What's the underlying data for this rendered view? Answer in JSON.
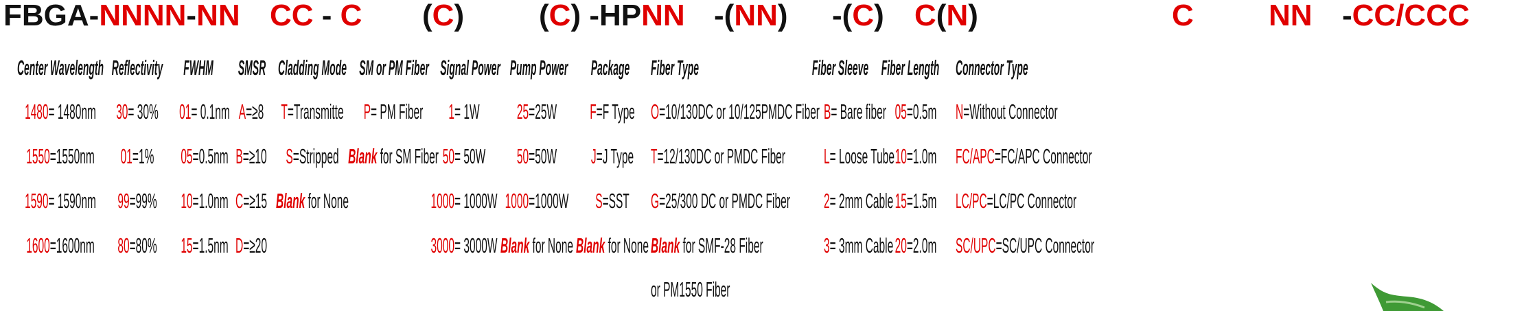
{
  "title_segments": [
    {
      "parts": [
        {
          "t": "FBGA-",
          "red": false
        },
        {
          "t": "NNNN",
          "red": true
        },
        {
          "t": "-",
          "red": false
        },
        {
          "t": "NN",
          "red": true
        }
      ]
    },
    {
      "parts": [
        {
          "t": "CC",
          "red": true
        },
        {
          "t": " - ",
          "red": false
        },
        {
          "t": "C",
          "red": true
        }
      ]
    },
    {
      "parts": [
        {
          "t": "(",
          "red": false
        },
        {
          "t": "C",
          "red": true
        },
        {
          "t": ")",
          "red": false
        }
      ]
    },
    {
      "parts": [
        {
          "t": "(",
          "red": false
        },
        {
          "t": "C",
          "red": true
        },
        {
          "t": ") -HP",
          "red": false
        },
        {
          "t": "NN",
          "red": true
        }
      ]
    },
    {
      "parts": [
        {
          "t": "-(",
          "red": false
        },
        {
          "t": "NN",
          "red": true
        },
        {
          "t": ")",
          "red": false
        }
      ]
    },
    {
      "parts": [
        {
          "t": "-(",
          "red": false
        },
        {
          "t": "C",
          "red": true
        },
        {
          "t": ")",
          "red": false
        }
      ]
    },
    {
      "parts": [
        {
          "t": "C",
          "red": true
        },
        {
          "t": "(",
          "red": false
        },
        {
          "t": "N",
          "red": true
        },
        {
          "t": ")",
          "red": false
        }
      ]
    },
    {
      "parts": [
        {
          "t": "C",
          "red": true
        }
      ]
    },
    {
      "parts": [
        {
          "t": "NN",
          "red": true
        }
      ]
    },
    {
      "parts": [
        {
          "t": "-",
          "red": false
        },
        {
          "t": "CC/CCC",
          "red": true
        }
      ]
    }
  ],
  "columns": [
    {
      "header": "Center Wavelength",
      "items": [
        {
          "code": "1480",
          "desc": "= 1480nm"
        },
        {
          "code": "1550",
          "desc": "=1550nm"
        },
        {
          "code": "1590",
          "desc": "= 1590nm"
        },
        {
          "code": "1600",
          "desc": "=1600nm"
        }
      ]
    },
    {
      "header": "Reflectivity",
      "items": [
        {
          "code": "30",
          "desc": "= 30%"
        },
        {
          "code": "01",
          "desc": "=1%"
        },
        {
          "code": "99",
          "desc": "=99%"
        },
        {
          "code": "80",
          "desc": "=80%"
        }
      ]
    },
    {
      "header": "FWHM",
      "items": [
        {
          "code": "01",
          "desc": "= 0.1nm"
        },
        {
          "code": "05",
          "desc": "=0.5nm"
        },
        {
          "code": "10",
          "desc": "=1.0nm"
        },
        {
          "code": "15",
          "desc": "=1.5nm"
        }
      ]
    },
    {
      "header": "SMSR",
      "items": [
        {
          "code": "A",
          "desc": "=≥8"
        },
        {
          "code": "B",
          "desc": "=≥10"
        },
        {
          "code": "C",
          "desc": "=≥15"
        },
        {
          "code": "D",
          "desc": "=≥20"
        }
      ]
    },
    {
      "header": "Cladding Mode",
      "items": [
        {
          "code": "T",
          "desc": "=Transmitte"
        },
        {
          "code": "S",
          "desc": "=Stripped"
        },
        {
          "code": "Blank",
          "desc": " for None",
          "italic": true
        }
      ]
    },
    {
      "header": "SM or PM Fiber",
      "items": [
        {
          "code": "P",
          "desc": "= PM Fiber"
        },
        {
          "code": "Blank",
          "desc": " for SM Fiber",
          "italic": true
        }
      ]
    },
    {
      "header": "Signal Power",
      "items": [
        {
          "code": "1",
          "desc": "= 1W"
        },
        {
          "code": "50",
          "desc": "= 50W"
        },
        {
          "code": "1000",
          "desc": "= 1000W"
        },
        {
          "code": "3000",
          "desc": "= 3000W"
        }
      ]
    },
    {
      "header": "Pump Power",
      "items": [
        {
          "code": "25",
          "desc": "=25W"
        },
        {
          "code": "50",
          "desc": "=50W"
        },
        {
          "code": "1000",
          "desc": "=1000W"
        },
        {
          "code": "Blank",
          "desc": " for None",
          "italic": true
        }
      ]
    },
    {
      "header": "Package",
      "items": [
        {
          "code": "F",
          "desc": "=F Type"
        },
        {
          "code": "J",
          "desc": "=J Type"
        },
        {
          "code": "S",
          "desc": "=SST"
        },
        {
          "code": "Blank",
          "desc": " for None",
          "italic": true
        }
      ]
    },
    {
      "header": "Fiber Type",
      "items": [
        {
          "code": "O",
          "desc": "=10/130DC or 10/125PMDC Fiber"
        },
        {
          "code": "T",
          "desc": "=12/130DC or PMDC Fiber"
        },
        {
          "code": "G",
          "desc": "=25/300 DC or PMDC Fiber"
        },
        {
          "code": "Blank",
          "desc": " for SMF-28 Fiber",
          "italic": true
        },
        {
          "code": "",
          "desc": "or PM1550 Fiber"
        }
      ]
    },
    {
      "header": "Fiber Sleeve",
      "items": [
        {
          "code": "B",
          "desc": "= Bare fiber"
        },
        {
          "code": "L",
          "desc": "= Loose Tube"
        },
        {
          "code": "2",
          "desc": "= 2mm Cable"
        },
        {
          "code": "3",
          "desc": "= 3mm Cable"
        }
      ]
    },
    {
      "header": "Fiber Length",
      "items": [
        {
          "code": "05",
          "desc": "=0.5m"
        },
        {
          "code": "10",
          "desc": "=1.0m"
        },
        {
          "code": "15",
          "desc": "=1.5m"
        },
        {
          "code": "20",
          "desc": "=2.0m"
        }
      ]
    },
    {
      "header": "Connector Type",
      "items": [
        {
          "code": "N",
          "desc": "=Without Connector"
        },
        {
          "code": "FC/APC",
          "desc": "=FC/APC Connector"
        },
        {
          "code": "LC/PC",
          "desc": "=LC/PC Connector"
        },
        {
          "code": "SC/UPC",
          "desc": "=SC/UPC Connector"
        }
      ]
    }
  ],
  "colors": {
    "code": "#e00000",
    "text": "#111111",
    "leaf": "#3f9a35"
  },
  "logo_icon": "leaf-icon"
}
